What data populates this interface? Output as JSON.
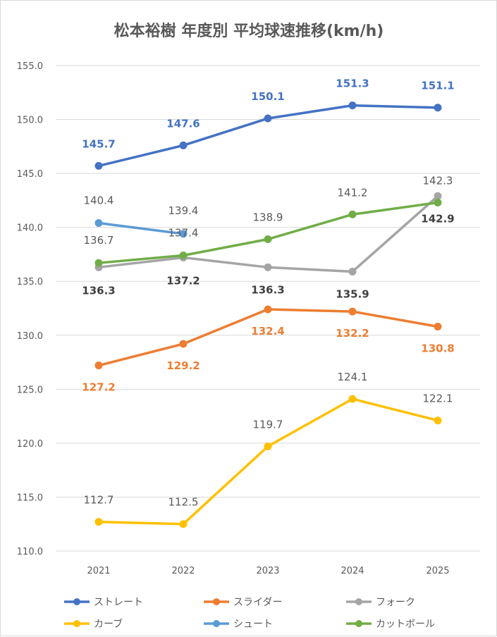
{
  "chart_data": {
    "type": "line",
    "title": "松本裕樹 年度別 平均球速推移(km/h)",
    "x": [
      "2021",
      "2022",
      "2023",
      "2024",
      "2025"
    ],
    "ylim": [
      110.0,
      155.0
    ],
    "yticks": [
      "110.0",
      "115.0",
      "120.0",
      "125.0",
      "130.0",
      "135.0",
      "140.0",
      "145.0",
      "150.0",
      "155.0"
    ],
    "grid": true,
    "legend_position": "bottom",
    "series": [
      {
        "name": "ストレート",
        "color": "#4472C4",
        "values": [
          145.7,
          147.6,
          150.1,
          151.3,
          151.1
        ],
        "labels": [
          "145.7",
          "147.6",
          "150.1",
          "151.3",
          "151.1"
        ],
        "label_color": "#4472C4",
        "label_bold": true
      },
      {
        "name": "スライダー",
        "color": "#ED7D31",
        "values": [
          127.2,
          129.2,
          132.4,
          132.2,
          130.8
        ],
        "labels": [
          "127.2",
          "129.2",
          "132.4",
          "132.2",
          "130.8"
        ],
        "label_color": "#ED7D31",
        "label_bold": true
      },
      {
        "name": "フォーク",
        "color": "#A5A5A5",
        "values": [
          136.3,
          137.2,
          136.3,
          135.9,
          142.9
        ],
        "labels": [
          "136.3",
          "137.2",
          "136.3",
          "135.9",
          "142.9"
        ],
        "label_color": "#404040",
        "label_bold": true
      },
      {
        "name": "カーブ",
        "color": "#FFC000",
        "values": [
          112.7,
          112.5,
          119.7,
          124.1,
          122.1
        ],
        "labels": [
          "112.7",
          "112.5",
          "119.7",
          "124.1",
          "122.1"
        ],
        "label_color": "#595959",
        "label_bold": false
      },
      {
        "name": "シュート",
        "color": "#5B9BD5",
        "values": [
          140.4,
          139.4,
          null,
          null,
          null
        ],
        "labels": [
          "140.4",
          "139.4",
          null,
          null,
          null
        ],
        "label_color": "#595959",
        "label_bold": false
      },
      {
        "name": "カットボール",
        "color": "#70AD47",
        "values": [
          136.7,
          137.4,
          138.9,
          141.2,
          142.3
        ],
        "labels": [
          "136.7",
          "137.4",
          "138.9",
          "141.2",
          "142.3"
        ],
        "label_color": "#595959",
        "label_bold": false
      }
    ]
  }
}
